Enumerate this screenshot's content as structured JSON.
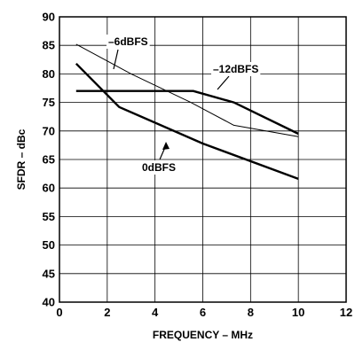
{
  "chart_data": {
    "type": "line",
    "title": "",
    "xlabel": "FREQUENCY – MHz",
    "ylabel": "SFDR – dBc",
    "xlim": [
      0,
      12
    ],
    "ylim": [
      40,
      90
    ],
    "xticks": [
      0,
      2,
      4,
      6,
      8,
      10,
      12
    ],
    "yticks": [
      40,
      45,
      50,
      55,
      60,
      65,
      70,
      75,
      80,
      85,
      90
    ],
    "grid": true,
    "legend": "none",
    "series": [
      {
        "name": "–6dBFS",
        "style": "thin",
        "color": "#000000",
        "x": [
          0.7,
          3.0,
          5.5,
          7.3,
          10.0
        ],
        "y": [
          85.2,
          80.0,
          75.0,
          71.0,
          69.0
        ]
      },
      {
        "name": "–12dBFS",
        "style": "thick",
        "color": "#000000",
        "x": [
          0.7,
          5.6,
          7.3,
          10.0
        ],
        "y": [
          77.0,
          77.0,
          75.0,
          69.5
        ]
      },
      {
        "name": "0dBFS",
        "style": "thick",
        "color": "#000000",
        "x": [
          0.7,
          2.5,
          6.0,
          10.0
        ],
        "y": [
          81.8,
          74.2,
          67.8,
          61.6
        ]
      }
    ]
  }
}
